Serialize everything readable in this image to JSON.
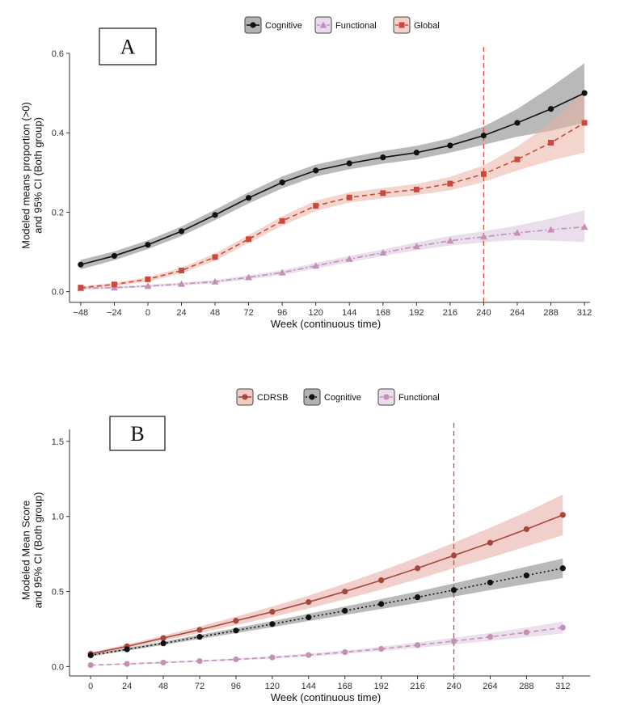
{
  "chart_data": [
    {
      "type": "line",
      "panel_label": "A",
      "xlabel": "Week (continuous time)",
      "ylabel_lines": [
        "Modeled means proportion (>0)",
        "and 95% CI (Both group)"
      ],
      "x_ticks": [
        -48,
        -24,
        0,
        24,
        48,
        72,
        96,
        120,
        144,
        168,
        192,
        216,
        240,
        264,
        288,
        312
      ],
      "y_ticks": [
        0.0,
        0.2,
        0.4,
        0.6
      ],
      "y_tick_labels": [
        "0.0",
        "0.2",
        "0.4",
        "0.6"
      ],
      "xlim": [
        -56,
        316
      ],
      "ylim": [
        -0.015,
        0.6
      ],
      "reference_line_x": 240,
      "legend_position": "top",
      "series": [
        {
          "name": "Cognitive",
          "color": "#111111",
          "band_color": "#7f7f7f",
          "dash": "solid",
          "marker": "circle",
          "x": [
            -48,
            -24,
            0,
            24,
            48,
            72,
            96,
            120,
            144,
            168,
            192,
            216,
            240,
            264,
            288,
            312
          ],
          "y": [
            0.068,
            0.09,
            0.118,
            0.152,
            0.193,
            0.236,
            0.275,
            0.305,
            0.323,
            0.338,
            0.35,
            0.368,
            0.393,
            0.425,
            0.46,
            0.5
          ],
          "lower": [
            0.056,
            0.079,
            0.107,
            0.14,
            0.18,
            0.222,
            0.26,
            0.29,
            0.308,
            0.322,
            0.333,
            0.35,
            0.37,
            0.39,
            0.405,
            0.425
          ],
          "upper": [
            0.08,
            0.101,
            0.129,
            0.164,
            0.206,
            0.25,
            0.29,
            0.32,
            0.338,
            0.354,
            0.367,
            0.386,
            0.416,
            0.46,
            0.515,
            0.575
          ]
        },
        {
          "name": "Functional",
          "color": "#c490b8",
          "band_color": "#d9c3dd",
          "dash": "dashdot",
          "marker": "triangle",
          "x": [
            -48,
            -24,
            0,
            24,
            48,
            72,
            96,
            120,
            144,
            168,
            192,
            216,
            240,
            264,
            288,
            312
          ],
          "y": [
            0.008,
            0.01,
            0.014,
            0.019,
            0.025,
            0.036,
            0.048,
            0.065,
            0.082,
            0.098,
            0.114,
            0.128,
            0.138,
            0.148,
            0.156,
            0.163
          ],
          "lower": [
            0.005,
            0.007,
            0.011,
            0.015,
            0.021,
            0.031,
            0.042,
            0.058,
            0.074,
            0.09,
            0.104,
            0.116,
            0.124,
            0.13,
            0.128,
            0.125
          ],
          "upper": [
            0.011,
            0.013,
            0.017,
            0.023,
            0.029,
            0.041,
            0.054,
            0.072,
            0.09,
            0.106,
            0.124,
            0.14,
            0.152,
            0.166,
            0.184,
            0.205
          ]
        },
        {
          "name": "Global",
          "color": "#c94a3c",
          "band_color": "#eab2a6",
          "dash": "dashed",
          "marker": "square",
          "x": [
            -48,
            -24,
            0,
            24,
            48,
            72,
            96,
            120,
            144,
            168,
            192,
            216,
            240,
            264,
            288,
            312
          ],
          "y": [
            0.01,
            0.018,
            0.031,
            0.053,
            0.087,
            0.132,
            0.178,
            0.216,
            0.237,
            0.248,
            0.257,
            0.272,
            0.296,
            0.333,
            0.375,
            0.425
          ],
          "lower": [
            0.007,
            0.014,
            0.025,
            0.046,
            0.078,
            0.122,
            0.166,
            0.203,
            0.224,
            0.235,
            0.243,
            0.255,
            0.276,
            0.305,
            0.33,
            0.35
          ],
          "upper": [
            0.013,
            0.022,
            0.037,
            0.06,
            0.096,
            0.142,
            0.19,
            0.229,
            0.25,
            0.261,
            0.271,
            0.289,
            0.318,
            0.365,
            0.425,
            0.505
          ]
        }
      ]
    },
    {
      "type": "line",
      "panel_label": "B",
      "xlabel": "Week (continuous time)",
      "ylabel_lines": [
        "Modeled Mean Score",
        "and 95% CI (Both group)"
      ],
      "x_ticks": [
        0,
        24,
        48,
        72,
        96,
        120,
        144,
        168,
        192,
        216,
        240,
        264,
        288,
        312
      ],
      "y_ticks": [
        0.0,
        0.5,
        1.0,
        1.5
      ],
      "y_tick_labels": [
        "0.0",
        "0.5",
        "1.0",
        "1.5"
      ],
      "xlim": [
        -14,
        330
      ],
      "ylim": [
        -0.03,
        1.58
      ],
      "reference_line_x": 240,
      "legend_position": "top",
      "series": [
        {
          "name": "CDRSB",
          "color": "#a9463c",
          "band_color": "#e6aaa0",
          "dash": "solid",
          "marker": "circle",
          "x": [
            0,
            24,
            48,
            72,
            96,
            120,
            144,
            168,
            192,
            216,
            240,
            264,
            288,
            312
          ],
          "y": [
            0.085,
            0.135,
            0.19,
            0.245,
            0.305,
            0.365,
            0.43,
            0.5,
            0.575,
            0.655,
            0.74,
            0.825,
            0.915,
            1.01
          ],
          "lower": [
            0.075,
            0.122,
            0.173,
            0.223,
            0.277,
            0.33,
            0.387,
            0.448,
            0.513,
            0.582,
            0.655,
            0.725,
            0.8,
            0.875
          ],
          "upper": [
            0.095,
            0.148,
            0.207,
            0.267,
            0.333,
            0.4,
            0.473,
            0.552,
            0.637,
            0.728,
            0.825,
            0.925,
            1.03,
            1.145
          ]
        },
        {
          "name": "Cognitive",
          "color": "#111111",
          "band_color": "#7f7f7f",
          "dash": "dotted",
          "marker": "circle",
          "x": [
            0,
            24,
            48,
            72,
            96,
            120,
            144,
            168,
            192,
            216,
            240,
            264,
            288,
            312
          ],
          "y": [
            0.075,
            0.115,
            0.155,
            0.198,
            0.24,
            0.283,
            0.328,
            0.372,
            0.417,
            0.462,
            0.51,
            0.56,
            0.607,
            0.655
          ],
          "lower": [
            0.068,
            0.106,
            0.144,
            0.184,
            0.223,
            0.263,
            0.304,
            0.344,
            0.384,
            0.424,
            0.466,
            0.51,
            0.55,
            0.59
          ],
          "upper": [
            0.082,
            0.124,
            0.166,
            0.212,
            0.257,
            0.303,
            0.352,
            0.4,
            0.45,
            0.5,
            0.554,
            0.61,
            0.665,
            0.72
          ]
        },
        {
          "name": "Functional",
          "color": "#c490b8",
          "band_color": "#dcc7df",
          "dash": "dashed",
          "marker": "circle",
          "x": [
            0,
            24,
            48,
            72,
            96,
            120,
            144,
            168,
            192,
            216,
            240,
            264,
            288,
            312
          ],
          "y": [
            0.01,
            0.018,
            0.027,
            0.037,
            0.048,
            0.061,
            0.077,
            0.096,
            0.118,
            0.143,
            0.17,
            0.198,
            0.228,
            0.26
          ],
          "lower": [
            0.007,
            0.014,
            0.022,
            0.031,
            0.041,
            0.053,
            0.067,
            0.084,
            0.103,
            0.125,
            0.148,
            0.171,
            0.196,
            0.22
          ],
          "upper": [
            0.013,
            0.022,
            0.032,
            0.043,
            0.055,
            0.069,
            0.087,
            0.108,
            0.133,
            0.161,
            0.192,
            0.225,
            0.26,
            0.3
          ]
        }
      ]
    }
  ]
}
